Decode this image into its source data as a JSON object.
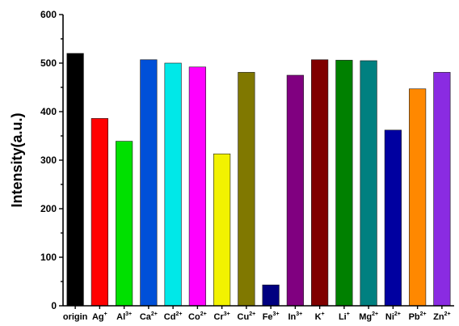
{
  "chart_data": {
    "type": "bar",
    "title": "",
    "xlabel": "",
    "ylabel": "Intensity(a.u.)",
    "ylim": [
      0,
      600
    ],
    "yticks": [
      0,
      100,
      200,
      300,
      400,
      500,
      600
    ],
    "grid": false,
    "legend": "none",
    "categories": [
      {
        "base": "origin",
        "sup": ""
      },
      {
        "base": "Ag",
        "sup": "+"
      },
      {
        "base": "Al",
        "sup": "3+"
      },
      {
        "base": "Ca",
        "sup": "2+"
      },
      {
        "base": "Cd",
        "sup": "2+"
      },
      {
        "base": "Co",
        "sup": "2+"
      },
      {
        "base": "Cr",
        "sup": "3+"
      },
      {
        "base": "Cu",
        "sup": "2+"
      },
      {
        "base": "Fe",
        "sup": "3+"
      },
      {
        "base": "In",
        "sup": "3+"
      },
      {
        "base": "K",
        "sup": "+"
      },
      {
        "base": "Li",
        "sup": "+"
      },
      {
        "base": "Mg",
        "sup": "2+"
      },
      {
        "base": "Ni",
        "sup": "2+"
      },
      {
        "base": "Pb",
        "sup": "2+"
      },
      {
        "base": "Zn",
        "sup": "2+"
      }
    ],
    "values": [
      520,
      386,
      339,
      507,
      500,
      492,
      313,
      481,
      43,
      475,
      507,
      506,
      505,
      362,
      447,
      481
    ],
    "colors": [
      "#000000",
      "#ff0000",
      "#00e000",
      "#0050d8",
      "#00e8e8",
      "#ff00ff",
      "#f2f200",
      "#807800",
      "#000080",
      "#800080",
      "#800000",
      "#008000",
      "#008080",
      "#0000a0",
      "#ff8800",
      "#8a2be2"
    ]
  }
}
